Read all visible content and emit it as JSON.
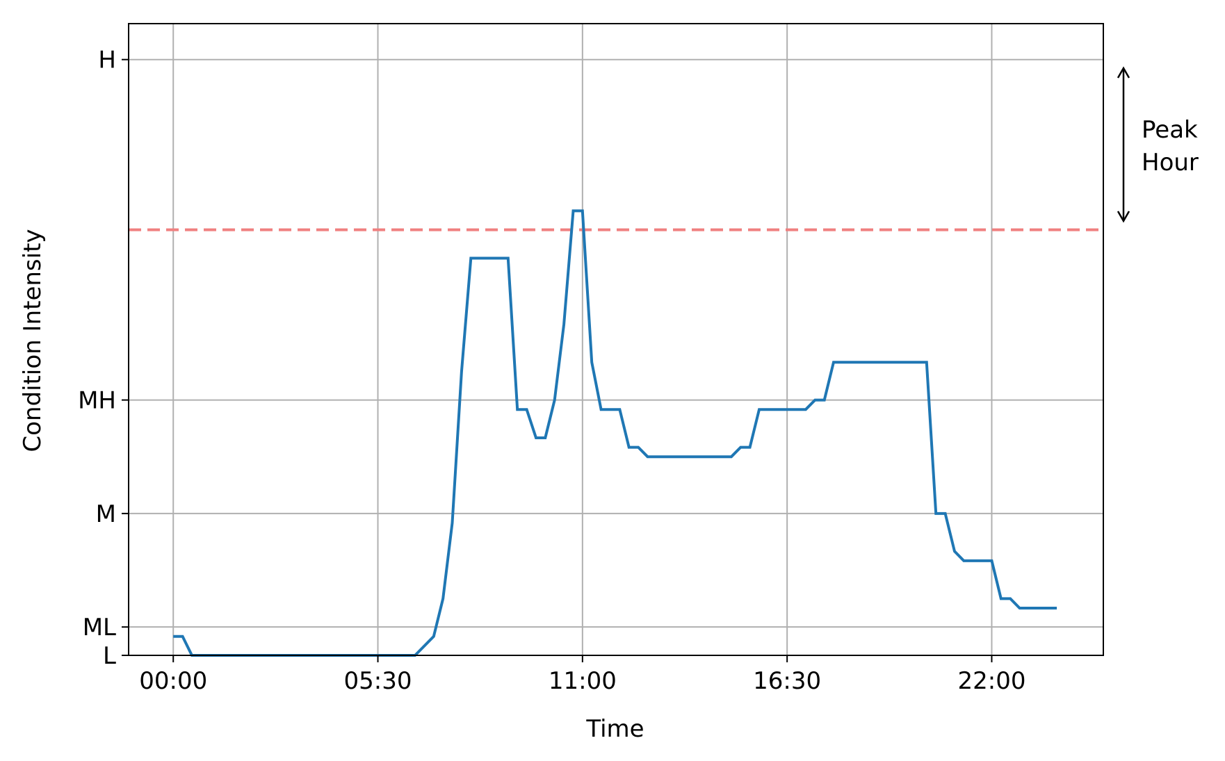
{
  "chart_data": {
    "type": "line",
    "xlabel": "Time",
    "ylabel": "Condition Intensity",
    "x_ticks": [
      {
        "value": 0,
        "label": "00:00"
      },
      {
        "value": 5.5,
        "label": "05:30"
      },
      {
        "value": 11,
        "label": "11:00"
      },
      {
        "value": 16.5,
        "label": "16:30"
      },
      {
        "value": 22,
        "label": "22:00"
      }
    ],
    "y_ticks": [
      {
        "value": 0,
        "label": "L"
      },
      {
        "value": 0.15,
        "label": "ML"
      },
      {
        "value": 0.75,
        "label": "M"
      },
      {
        "value": 1.35,
        "label": "MH"
      },
      {
        "value": 3.15,
        "label": "H"
      }
    ],
    "xlim": [
      -1.2,
      25
    ],
    "ylim": [
      0,
      3.34
    ],
    "grid": true,
    "threshold": {
      "value": 2.25,
      "color": "#f08080",
      "style": "dashed"
    },
    "annotation": {
      "lines": [
        "Peak",
        "Hour"
      ],
      "arrow": "double-headed"
    },
    "series": [
      {
        "color": "#1f77b4",
        "x": [
          0,
          0.25,
          0.5,
          6.5,
          7.0,
          7.25,
          7.5,
          7.75,
          8.0,
          9.0,
          9.25,
          9.5,
          9.75,
          10.0,
          10.25,
          10.5,
          10.75,
          11.0,
          11.25,
          11.5,
          12.0,
          12.25,
          12.5,
          12.75,
          15.0,
          15.25,
          15.5,
          15.75,
          16.5,
          17.0,
          17.25,
          17.5,
          17.75,
          20.25,
          20.5,
          20.75,
          21.0,
          21.25,
          22.0,
          22.25,
          22.5,
          22.75,
          23.75
        ],
        "y": [
          0.1,
          0.1,
          0.0,
          0.0,
          0.1,
          0.3,
          0.7,
          1.5,
          2.1,
          2.1,
          1.3,
          1.3,
          1.15,
          1.15,
          1.35,
          1.75,
          2.35,
          2.35,
          1.55,
          1.3,
          1.3,
          1.1,
          1.1,
          1.05,
          1.05,
          1.1,
          1.1,
          1.3,
          1.3,
          1.3,
          1.35,
          1.35,
          1.55,
          1.55,
          0.75,
          0.75,
          0.55,
          0.5,
          0.5,
          0.3,
          0.3,
          0.25,
          0.25
        ]
      }
    ]
  }
}
